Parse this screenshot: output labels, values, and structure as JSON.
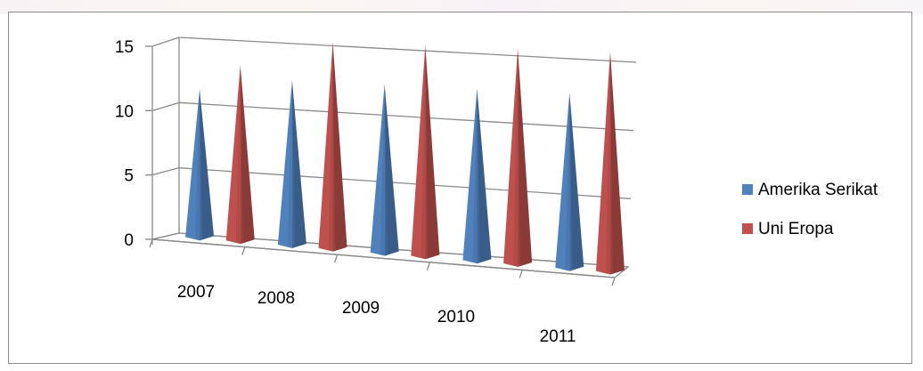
{
  "chart_data": {
    "type": "bar",
    "style": "3d-cone",
    "title": "",
    "xlabel": "",
    "ylabel": "",
    "categories": [
      "2007",
      "2008",
      "2009",
      "2010",
      "2011"
    ],
    "series": [
      {
        "name": "Amerika Serikat",
        "values": [
          11,
          12,
          12,
          12,
          12
        ],
        "color": "#4f81bd"
      },
      {
        "name": "Uni Eropa",
        "values": [
          13,
          15,
          15,
          15,
          15
        ],
        "color": "#c0504d"
      }
    ],
    "ylim": [
      0,
      15
    ],
    "yticks": [
      "0",
      "5",
      "10",
      "15"
    ],
    "grid": true,
    "legend_position": "right"
  }
}
